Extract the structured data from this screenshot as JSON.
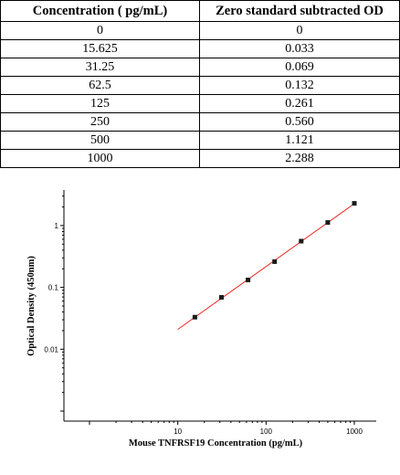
{
  "table": {
    "headers": [
      "Concentration ( pg/mL)",
      "Zero standard subtracted OD"
    ],
    "rows": [
      [
        "0",
        "0"
      ],
      [
        "15.625",
        "0.033"
      ],
      [
        "31.25",
        "0.069"
      ],
      [
        "62.5",
        "0.132"
      ],
      [
        "125",
        "0.261"
      ],
      [
        "250",
        "0.560"
      ],
      [
        "500",
        "1.121"
      ],
      [
        "1000",
        "2.288"
      ]
    ]
  },
  "chart_data": {
    "type": "scatter",
    "xlabel": "Mouse TNFRSF19 Concentration (pg/mL)",
    "ylabel": "Optical Density (450nm)",
    "x_scale": "log",
    "y_scale": "log",
    "xlim": [
      1,
      1000
    ],
    "ylim": [
      0.001,
      2.5
    ],
    "x_ticks": [
      "10",
      "100",
      "1000"
    ],
    "y_ticks": [
      "0.01",
      "0.1",
      "1"
    ],
    "grid": false,
    "series": [
      {
        "x": [
          15.625,
          31.25,
          62.5,
          125,
          250,
          500,
          1000
        ],
        "y": [
          0.033,
          0.069,
          0.132,
          0.261,
          0.56,
          1.121,
          2.288
        ],
        "marker_color": "#1a1a1a"
      }
    ],
    "fit_line": {
      "color": "#e8281e",
      "x_range": [
        10,
        1000
      ]
    }
  }
}
